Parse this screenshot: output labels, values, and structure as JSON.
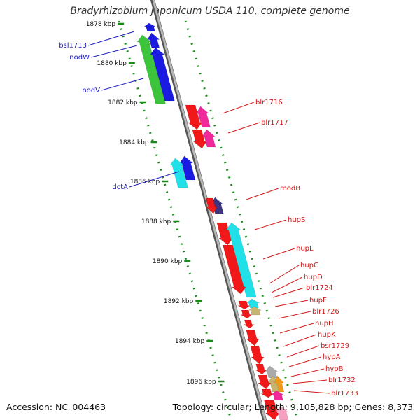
{
  "title": "Bradyrhizobium japonicum USDA 110, complete genome",
  "footer": {
    "accession": "Accession: NC_004463",
    "topology": "Topology: circular; Length: 9,105,828 bp; Genes: 8,373"
  },
  "colors": {
    "blue": "#1a1ae0",
    "green": "#3cc43c",
    "red": "#f01818",
    "magenta": "#f0289a",
    "cyan": "#22e0e8",
    "purple": "#3d3580",
    "tan": "#c8b46e",
    "gray": "#aaaaaa",
    "orange": "#f09a1a",
    "pink": "#f5a0c0",
    "dots": "#1a8a1a",
    "backbone": "#888888"
  },
  "kbp_ticks": [
    "1878 kbp",
    "1880 kbp",
    "1882 kbp",
    "1884 kbp",
    "1886 kbp",
    "1888 kbp",
    "1890 kbp",
    "1892 kbp",
    "1894 kbp",
    "1896 kbp"
  ],
  "left_labels": [
    "bsl1713",
    "nodW",
    "nodV",
    "dctA"
  ],
  "right_labels": [
    "blr1716",
    "blr1717",
    "modB",
    "hupS",
    "hupL",
    "hupC",
    "hupD",
    "blr1724",
    "hupF",
    "blr1726",
    "hupH",
    "hupK",
    "bsr1729",
    "hypA",
    "hypB",
    "blr1732",
    "blr1733"
  ]
}
